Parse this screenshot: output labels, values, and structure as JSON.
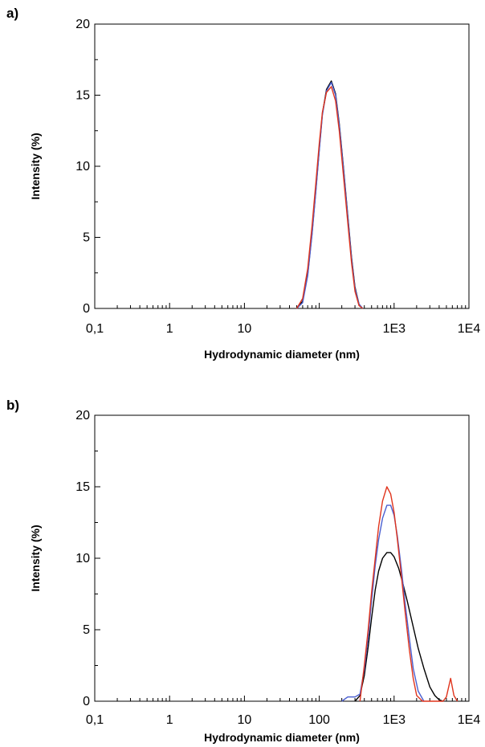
{
  "chart_data": [
    {
      "panel_label": "a)",
      "type": "line",
      "xlabel": "Hydrodynamic diameter (nm)",
      "ylabel": "Intensity (%)",
      "x_scale": "log",
      "xlim": [
        0.1,
        10000
      ],
      "ylim": [
        0,
        20
      ],
      "x_ticks": [
        0.1,
        1,
        10,
        100,
        1000,
        10000
      ],
      "x_tick_labels": [
        "0,1",
        "1",
        "10",
        "",
        "1E3",
        "1E4"
      ],
      "y_ticks": [
        0,
        5,
        10,
        15,
        20
      ],
      "y_tick_labels": [
        "0",
        "5",
        "10",
        "15",
        "20"
      ],
      "grid": false,
      "series": [
        {
          "color": "#000000",
          "x": [
            50,
            60,
            70,
            80,
            90,
            100,
            110,
            125,
            145,
            165,
            185,
            210,
            240,
            270,
            300,
            340,
            380
          ],
          "y": [
            0,
            0.5,
            2.4,
            5.3,
            8.3,
            11.2,
            13.7,
            15.4,
            16.0,
            15.1,
            13.0,
            10.0,
            6.6,
            3.6,
            1.5,
            0.3,
            0
          ]
        },
        {
          "color": "#4a5fd0",
          "x": [
            50,
            60,
            70,
            80,
            90,
            100,
            110,
            125,
            145,
            165,
            185,
            210,
            240,
            270,
            300,
            340,
            380
          ],
          "y": [
            0,
            0.4,
            2.3,
            5.2,
            8.2,
            11.1,
            13.6,
            15.3,
            15.9,
            15.0,
            12.9,
            9.9,
            6.5,
            3.5,
            1.4,
            0.3,
            0
          ]
        },
        {
          "color": "#e0341c",
          "x": [
            50,
            60,
            70,
            80,
            90,
            100,
            110,
            125,
            145,
            165,
            185,
            210,
            240,
            270,
            300,
            340,
            380
          ],
          "y": [
            0,
            0.7,
            2.8,
            5.8,
            8.8,
            11.6,
            13.8,
            15.2,
            15.6,
            14.6,
            12.5,
            9.4,
            6.1,
            3.2,
            1.2,
            0.2,
            0
          ]
        }
      ]
    },
    {
      "panel_label": "b)",
      "type": "line",
      "xlabel": "Hydrodynamic diameter (nm)",
      "ylabel": "Intensity (%)",
      "x_scale": "log",
      "xlim": [
        0.1,
        10000
      ],
      "ylim": [
        0,
        20
      ],
      "x_ticks": [
        0.1,
        1,
        10,
        100,
        1000,
        10000
      ],
      "x_tick_labels": [
        "0,1",
        "1",
        "10",
        "100",
        "1E3",
        "1E4"
      ],
      "y_ticks": [
        0,
        5,
        10,
        15,
        20
      ],
      "y_tick_labels": [
        "0",
        "5",
        "10",
        "15",
        "20"
      ],
      "grid": false,
      "series": [
        {
          "color": "#000000",
          "x": [
            300,
            350,
            400,
            450,
            500,
            560,
            620,
            700,
            800,
            900,
            1000,
            1150,
            1300,
            1500,
            1800,
            2100,
            2500,
            3000,
            3500,
            4000,
            4500
          ],
          "y": [
            0,
            0.4,
            1.8,
            3.8,
            5.8,
            7.8,
            9.1,
            10.0,
            10.4,
            10.4,
            10.1,
            9.3,
            8.3,
            7.0,
            5.2,
            3.7,
            2.3,
            1.0,
            0.4,
            0.1,
            0
          ]
        },
        {
          "color": "#4a5fd0",
          "x": [
            200,
            240,
            300,
            350,
            400,
            450,
            500,
            560,
            620,
            700,
            800,
            900,
            1000,
            1100,
            1250,
            1400,
            1600,
            1800,
            2100,
            2500
          ],
          "y": [
            0,
            0.3,
            0.3,
            0.5,
            2.2,
            4.5,
            7.0,
            9.5,
            11.3,
            12.8,
            13.7,
            13.7,
            13.0,
            11.6,
            9.3,
            6.9,
            4.4,
            2.3,
            0.7,
            0
          ]
        },
        {
          "color": "#e0341c",
          "x": [
            350,
            400,
            450,
            500,
            560,
            620,
            700,
            800,
            900,
            1000,
            1100,
            1250,
            1400,
            1600,
            1800,
            2000,
            2400,
            3000,
            3500,
            4000,
            4500,
            5000,
            5700,
            6300,
            7000
          ],
          "y": [
            0,
            2.5,
            5.0,
            7.6,
            10.0,
            12.2,
            14.0,
            15.0,
            14.5,
            13.2,
            11.4,
            8.8,
            6.3,
            3.6,
            1.6,
            0.4,
            0,
            0,
            0,
            0,
            0,
            0.3,
            1.6,
            0.4,
            0
          ]
        }
      ]
    }
  ]
}
